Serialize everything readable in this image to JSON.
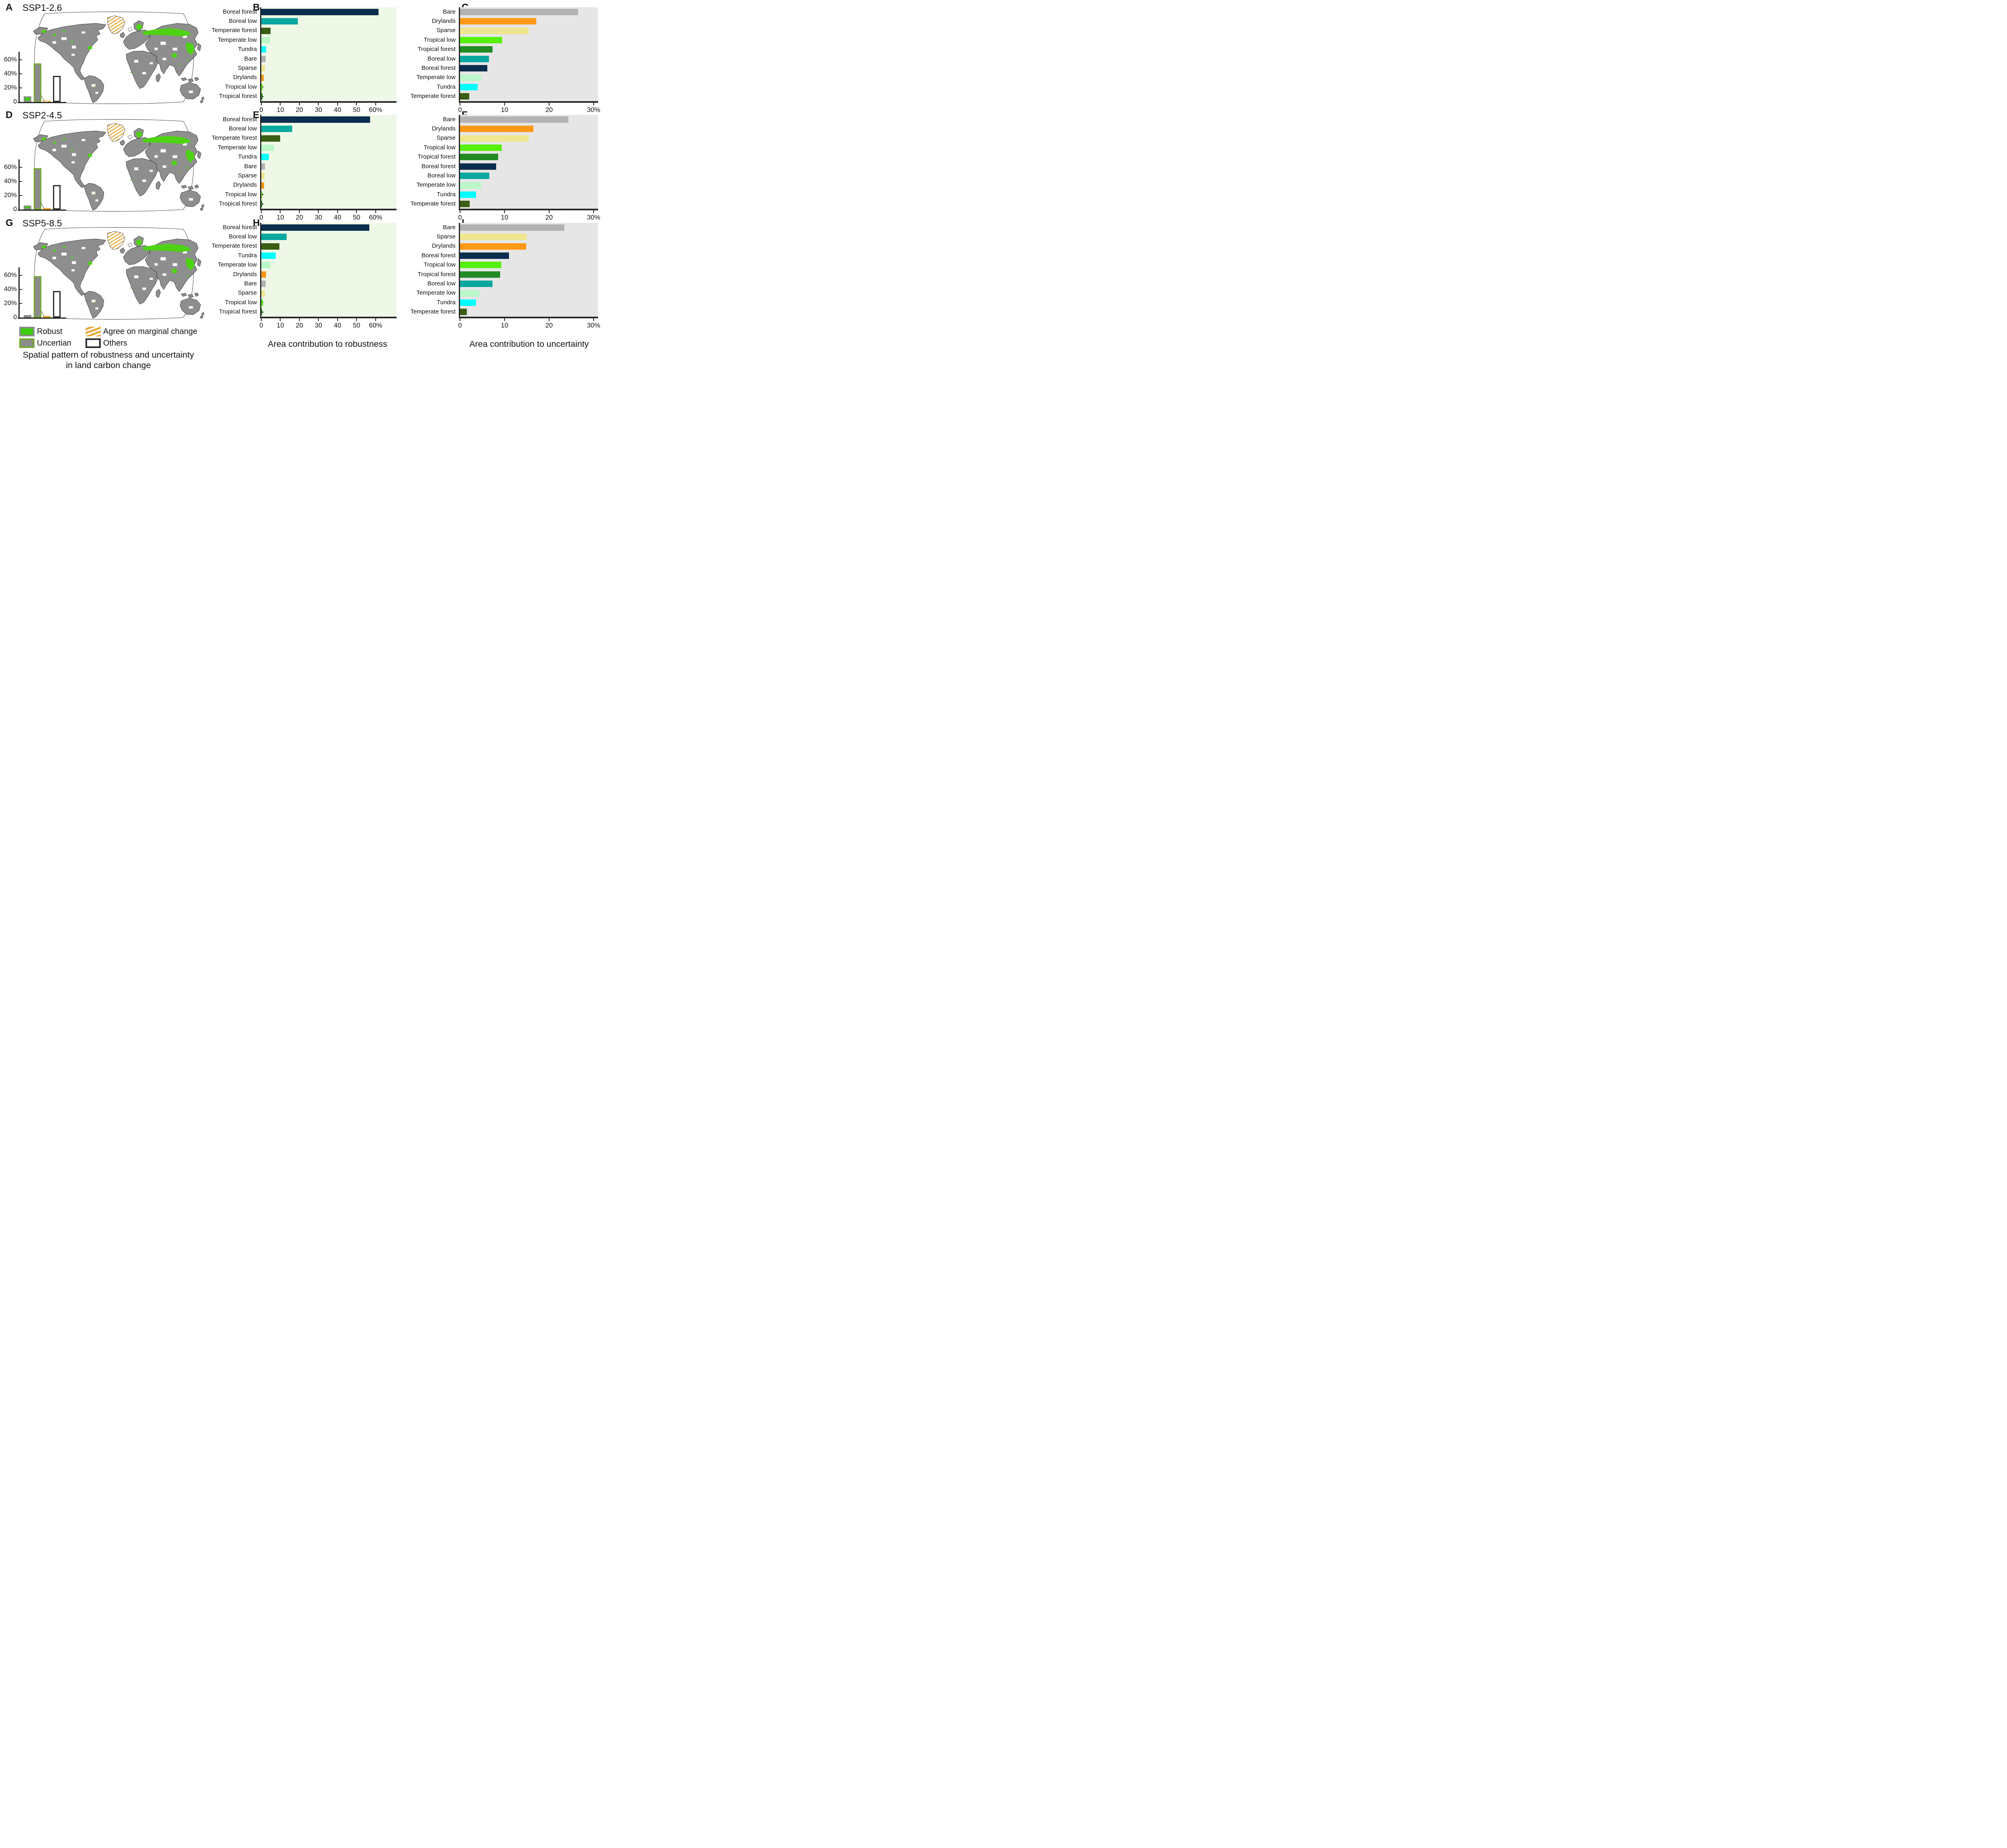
{
  "ui": {
    "panels": {
      "A": {
        "letter": "A",
        "title": "SSP1-2.6"
      },
      "B": {
        "letter": "B"
      },
      "C": {
        "letter": "C"
      },
      "D": {
        "letter": "D",
        "title": "SSP2-4.5"
      },
      "E": {
        "letter": "E"
      },
      "F": {
        "letter": "F"
      },
      "G": {
        "letter": "G",
        "title": "SSP5-8.5"
      },
      "H": {
        "letter": "H"
      },
      "I": {
        "letter": "I"
      }
    },
    "xlabels": {
      "robustness": "Area contribution to robustness",
      "uncertainty": "Area contribution to uncertainty"
    },
    "legend": {
      "robust": "Robust",
      "uncertian": "Uncertian",
      "marginal": "Agree on marginal change",
      "others": "Others"
    },
    "caption": {
      "line1": "Spatial pattern of robustness and uncertainty",
      "line2": "in land carbon change"
    }
  },
  "colors": {
    "category_colors": {
      "Boreal forest": "#0b2e4f",
      "Boreal low": "#06a89f",
      "Temperate forest": "#3a5e12",
      "Temperate low": "#bbf7c8",
      "Tundra": "#00ffff",
      "Bare": "#b3b3b3",
      "Sparse": "#efe68f",
      "Drylands": "#ff9815",
      "Tropical low": "#56f00a",
      "Tropical forest": "#238b23"
    },
    "inset_styles": [
      {
        "name": "Robust",
        "fill": "#3ecc0f",
        "border": "#8a8a8a"
      },
      {
        "name": "Uncertian",
        "fill": "#8c8c8c",
        "border": "#76a832"
      },
      {
        "name": "Agree on marginal change",
        "fill": "#e7a93c",
        "border": null
      },
      {
        "name": "Others",
        "fill": "#ffffff",
        "border": "#2b2b2b"
      }
    ],
    "css_vars": {
      "axis": "#262626",
      "land": "#8e8e8e",
      "mapgreen": "#4ed314",
      "coast": "#0a0a0a",
      "frame": "#333333",
      "hatch": "#e7a93c"
    }
  },
  "chart_data": [
    {
      "panel": "B",
      "scenario": "SSP1-2.6",
      "type": "bar",
      "orientation": "horizontal",
      "xlabel": "Area contribution to robustness",
      "xlim": [
        0,
        71
      ],
      "xticks": [
        0,
        10,
        20,
        30,
        40,
        50,
        60
      ],
      "xtick_suffix": "%",
      "plot_bg": "#eff8e7",
      "categories": [
        "Boreal forest",
        "Boreal low",
        "Temperate forest",
        "Temperate low",
        "Tundra",
        "Bare",
        "Sparse",
        "Drylands",
        "Tropical low",
        "Tropical forest"
      ],
      "values": [
        61.5,
        19.2,
        4.9,
        4.6,
        2.6,
        2.4,
        2.0,
        1.3,
        0.7,
        0.6
      ]
    },
    {
      "panel": "E",
      "scenario": "SSP2-4.5",
      "type": "bar",
      "orientation": "horizontal",
      "xlabel": "Area contribution to robustness",
      "xlim": [
        0,
        71
      ],
      "xticks": [
        0,
        10,
        20,
        30,
        40,
        50,
        60
      ],
      "xtick_suffix": "%",
      "plot_bg": "#eff8e7",
      "categories": [
        "Boreal forest",
        "Boreal low",
        "Temperate forest",
        "Temperate low",
        "Tundra",
        "Bare",
        "Sparse",
        "Drylands",
        "Tropical low",
        "Tropical forest"
      ],
      "values": [
        57.2,
        16.3,
        9.8,
        6.8,
        4.1,
        2.0,
        1.7,
        1.5,
        0.5,
        0.3
      ]
    },
    {
      "panel": "H",
      "scenario": "SSP5-8.5",
      "type": "bar",
      "orientation": "horizontal",
      "xlabel": "Area contribution to robustness",
      "xlim": [
        0,
        71
      ],
      "xticks": [
        0,
        10,
        20,
        30,
        40,
        50,
        60
      ],
      "xtick_suffix": "%",
      "plot_bg": "#eff8e7",
      "categories": [
        "Boreal forest",
        "Boreal low",
        "Temperate forest",
        "Tundra",
        "Temperate low",
        "Drylands",
        "Bare",
        "Sparse",
        "Tropical low",
        "Tropical forest"
      ],
      "values": [
        56.6,
        13.2,
        9.5,
        7.6,
        4.8,
        2.6,
        2.3,
        1.8,
        0.9,
        0.4
      ]
    },
    {
      "panel": "C",
      "scenario": "SSP1-2.6",
      "type": "bar",
      "orientation": "horizontal",
      "xlabel": "Area contribution to uncertainty",
      "xlim": [
        0,
        31
      ],
      "xticks": [
        0,
        10,
        20,
        30
      ],
      "xtick_suffix": "%",
      "plot_bg": "#e6e6e6",
      "categories": [
        "Bare",
        "Drylands",
        "Sparse",
        "Tropical low",
        "Tropical forest",
        "Boreal low",
        "Boreal forest",
        "Temperate low",
        "Tundra",
        "Temperate forest"
      ],
      "values": [
        26.5,
        17.1,
        15.4,
        9.5,
        7.3,
        6.5,
        6.1,
        4.8,
        4.0,
        2.1
      ]
    },
    {
      "panel": "F",
      "scenario": "SSP2-4.5",
      "type": "bar",
      "orientation": "horizontal",
      "xlabel": "Area contribution to uncertainty",
      "xlim": [
        0,
        31
      ],
      "xticks": [
        0,
        10,
        20,
        30
      ],
      "xtick_suffix": "%",
      "plot_bg": "#e6e6e6",
      "categories": [
        "Bare",
        "Drylands",
        "Sparse",
        "Tropical low",
        "Tropical forest",
        "Boreal forest",
        "Boreal low",
        "Temperate low",
        "Tundra",
        "Temperate forest"
      ],
      "values": [
        24.3,
        16.5,
        15.4,
        9.4,
        8.6,
        8.1,
        6.6,
        4.8,
        3.6,
        2.2
      ]
    },
    {
      "panel": "I",
      "scenario": "SSP5-8.5",
      "type": "bar",
      "orientation": "horizontal",
      "xlabel": "Area contribution to uncertainty",
      "xlim": [
        0,
        31
      ],
      "xticks": [
        0,
        10,
        20,
        30
      ],
      "xtick_suffix": "%",
      "plot_bg": "#e6e6e6",
      "categories": [
        "Bare",
        "Sparse",
        "Drylands",
        "Boreal forest",
        "Tropical low",
        "Tropical forest",
        "Boreal low",
        "Temperate low",
        "Tundra",
        "Temperate forest"
      ],
      "values": [
        23.4,
        15.0,
        14.9,
        11.0,
        9.3,
        9.0,
        7.3,
        4.3,
        3.6,
        1.5
      ]
    },
    {
      "panel": "A-inset",
      "scenario": "SSP1-2.6",
      "type": "bar",
      "orientation": "vertical",
      "ylim": [
        0,
        70
      ],
      "yticks": [
        0,
        20,
        40,
        60
      ],
      "ytick_suffix": "%",
      "marginal_hatched": true,
      "categories": [
        "Robust",
        "Uncertian",
        "Agree on marginal change",
        "Others"
      ],
      "values": [
        8,
        55,
        2.5,
        37
      ]
    },
    {
      "panel": "D-inset",
      "scenario": "SSP2-4.5",
      "type": "bar",
      "orientation": "vertical",
      "ylim": [
        0,
        70
      ],
      "yticks": [
        0,
        20,
        40,
        60
      ],
      "ytick_suffix": "%",
      "marginal_hatched": false,
      "categories": [
        "Robust",
        "Uncertian",
        "Agree on marginal change",
        "Others"
      ],
      "values": [
        5.5,
        59,
        2,
        35
      ]
    },
    {
      "panel": "G-inset",
      "scenario": "SSP5-8.5",
      "type": "bar",
      "orientation": "vertical",
      "ylim": [
        0,
        70
      ],
      "yticks": [
        0,
        20,
        40,
        60
      ],
      "ytick_suffix": "%",
      "marginal_hatched": false,
      "categories": [
        "Robust",
        "Uncertian",
        "Agree on marginal change",
        "Others"
      ],
      "values": [
        3.5,
        59,
        2,
        38
      ]
    }
  ]
}
